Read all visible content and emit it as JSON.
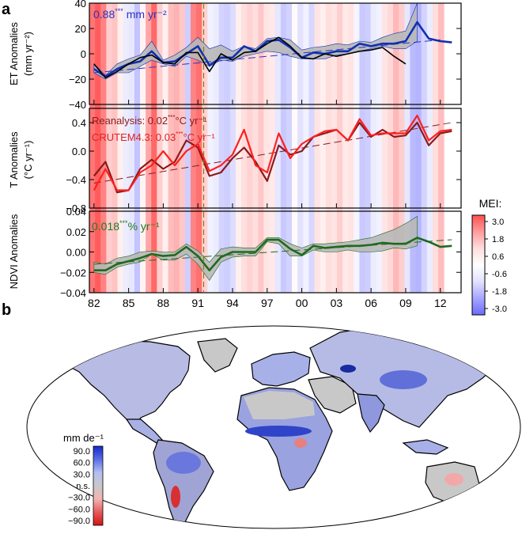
{
  "panel_labels": {
    "a": "a",
    "b": "b"
  },
  "mei_colorbar": {
    "title": "MEI:",
    "ticks": [
      "3.0",
      "1.8",
      "0.6",
      "-0.6",
      "-1.8",
      "-3.0"
    ],
    "stops": [
      {
        "v": 3.0,
        "c": "#ff5050"
      },
      {
        "v": 1.8,
        "c": "#ff9c9c"
      },
      {
        "v": 0.6,
        "c": "#ffdede"
      },
      {
        "v": 0,
        "c": "#ffffff"
      },
      {
        "v": -0.6,
        "c": "#e2e2ff"
      },
      {
        "v": -1.8,
        "c": "#a6a6ff"
      },
      {
        "v": -3.0,
        "c": "#6b6bff"
      }
    ]
  },
  "mei_background": {
    "x_range": [
      1981.6,
      2012.3
    ],
    "values": [
      2.4,
      2.8,
      2.2,
      0.9,
      1.1,
      0.3,
      -0.4,
      -0.5,
      -1.2,
      0.2,
      1.6,
      2.6,
      0.9,
      0.3,
      1.2,
      1.4,
      1.0,
      -1.0,
      2.2,
      2.5,
      0.8,
      -0.3,
      -0.4,
      -0.9,
      -1.0,
      -0.7,
      0.3,
      0.6,
      0.8,
      0.6,
      1.0,
      0.5,
      0.4,
      -0.5,
      -1.1,
      -0.9,
      0.1,
      -0.6,
      -0.3,
      -0.8,
      0.5,
      0.3,
      0.6,
      0.5,
      0.9,
      0.4,
      0.5,
      -0.2,
      -1.1,
      -1.0,
      -0.4,
      -0.3,
      0.5,
      0.7,
      1.3,
      0.9,
      -0.5,
      -1.4,
      -1.5,
      -0.9,
      -0.4,
      0.6,
      1.2
    ]
  },
  "pinatubo_line": {
    "x": 1991.5,
    "color": "#808000"
  },
  "chart_data": [
    {
      "id": "et",
      "type": "line",
      "ylabel": "ET Anomalies",
      "ylabel_units": "(mm yr⁻²)",
      "ylim": [
        -40,
        40
      ],
      "yticks": [
        40,
        20,
        0,
        -20,
        -40
      ],
      "ytick_labels": [
        "40",
        "20",
        "0",
        "−20",
        "−40"
      ],
      "annotation_value": "0.88",
      "annotation_stars": "***",
      "annotation_units": "mm yr⁻²",
      "annotation_color": "#3030c0",
      "x": [
        1982,
        1983,
        1984,
        1985,
        1986,
        1987,
        1988,
        1989,
        1990,
        1991,
        1992,
        1993,
        1994,
        1995,
        1996,
        1997,
        1998,
        1999,
        2000,
        2001,
        2002,
        2003,
        2004,
        2005,
        2006,
        2007,
        2008,
        2009,
        2010,
        2011,
        2012,
        2013
      ],
      "band_low": [
        -15,
        -20,
        -15,
        -15,
        -10,
        -5,
        -8,
        -10,
        -2,
        -5,
        -10,
        -5,
        -6,
        -2,
        0,
        2,
        1,
        -2,
        -4,
        -4,
        -4,
        -1,
        0,
        2,
        4,
        6,
        4,
        4,
        10,
        null,
        null,
        null
      ],
      "band_high": [
        -8,
        -17,
        -8,
        -4,
        -1,
        10,
        -5,
        -1,
        5,
        13,
        4,
        7,
        2,
        6,
        4,
        12,
        13,
        11,
        3,
        5,
        6,
        8,
        7,
        10,
        9,
        13,
        16,
        18,
        40,
        null,
        null,
        null
      ],
      "series": [
        {
          "name": "ET mean",
          "color": "#1030b0",
          "width": 2.6,
          "values": [
            -12,
            -18,
            -12,
            -8,
            -6,
            2,
            -7,
            -6,
            0,
            6,
            -9,
            -3,
            -3,
            6,
            2,
            10,
            11,
            5,
            -3,
            1,
            0,
            2,
            2,
            8,
            6,
            8,
            8,
            10,
            25,
            12,
            10,
            9
          ]
        },
        {
          "name": "ET model",
          "color": "#000000",
          "width": 1.6,
          "values": [
            -8,
            -19,
            -14,
            -8,
            -3,
            -1,
            -7,
            -8,
            1,
            1,
            -14,
            0,
            -5,
            1,
            2,
            8,
            13,
            6,
            -3,
            -4,
            0,
            -2,
            0,
            2,
            3,
            5,
            -2,
            -8,
            null,
            null,
            null,
            null
          ]
        }
      ],
      "trend": {
        "x": [
          1982,
          2012
        ],
        "y": [
          -15,
          11
        ],
        "color": "#3030c0"
      }
    },
    {
      "id": "t",
      "type": "line",
      "ylabel": "T Anomalies",
      "ylabel_units": "(°C yr⁻¹)",
      "ylim": [
        -0.8,
        0.6
      ],
      "yticks": [
        0.4,
        0.0,
        -0.4,
        -0.8
      ],
      "ytick_labels": [
        "0.4",
        "0.0",
        "−0.4",
        "−0.8"
      ],
      "annotations": [
        {
          "prefix": "Reanalysis: 0.02",
          "stars": "***",
          "suffix": "°C yr⁻¹",
          "color": "#8b1a1a"
        },
        {
          "prefix": "CRUTEM4.3: 0.03",
          "stars": "***",
          "suffix": "°C yr⁻¹",
          "color": "#e02020"
        }
      ],
      "x": [
        1982,
        1983,
        1984,
        1985,
        1986,
        1987,
        1988,
        1989,
        1990,
        1991,
        1992,
        1993,
        1994,
        1995,
        1996,
        1997,
        1998,
        1999,
        2000,
        2001,
        2002,
        2003,
        2004,
        2005,
        2006,
        2007,
        2008,
        2009,
        2010,
        2011,
        2012,
        2013
      ],
      "series": [
        {
          "name": "Reanalysis",
          "color": "#8b1a1a",
          "width": 2.2,
          "values": [
            -0.35,
            -0.15,
            -0.58,
            -0.55,
            -0.25,
            -0.12,
            -0.25,
            -0.15,
            0.15,
            0.05,
            -0.35,
            -0.3,
            -0.1,
            0.05,
            -0.15,
            -0.42,
            0.08,
            -0.05,
            0.0,
            0.2,
            0.25,
            0.3,
            0.15,
            0.4,
            0.2,
            0.3,
            0.2,
            0.22,
            0.4,
            0.08,
            0.25,
            0.28
          ]
        },
        {
          "name": "CRUTEM4.3",
          "color": "#ff2020",
          "width": 2.2,
          "values": [
            -0.55,
            -0.25,
            -0.55,
            -0.55,
            -0.3,
            -0.2,
            0.0,
            -0.2,
            0.0,
            0.1,
            -0.28,
            -0.2,
            -0.05,
            0.3,
            -0.2,
            -0.3,
            0.25,
            -0.1,
            0.1,
            0.2,
            0.28,
            0.3,
            0.15,
            0.45,
            0.22,
            0.25,
            0.25,
            0.25,
            0.5,
            0.15,
            0.28,
            0.3
          ]
        }
      ],
      "trend": {
        "x": [
          1982,
          2013
        ],
        "y": [
          -0.45,
          0.4
        ],
        "color": "#8b1a1a"
      }
    },
    {
      "id": "ndvi",
      "type": "line",
      "ylabel": "NDVI Anomalies",
      "ylim": [
        -0.04,
        0.04
      ],
      "yticks": [
        0.04,
        0.02,
        0.0,
        -0.02,
        -0.04
      ],
      "ytick_labels": [
        "0.04",
        "0.02",
        "0.00",
        "−0.02",
        "−0.04"
      ],
      "annotation_value": "0.018",
      "annotation_stars": "***",
      "annotation_units": "% yr⁻¹",
      "annotation_color": "#1f7a1f",
      "x": [
        1982,
        1983,
        1984,
        1985,
        1986,
        1987,
        1988,
        1989,
        1990,
        1991,
        1992,
        1993,
        1994,
        1995,
        1996,
        1997,
        1998,
        1999,
        2000,
        2001,
        2002,
        2003,
        2004,
        2005,
        2006,
        2007,
        2008,
        2009,
        2010,
        2011,
        2012,
        2013
      ],
      "band_low": [
        -0.02,
        -0.022,
        -0.015,
        -0.012,
        -0.01,
        -0.002,
        -0.008,
        -0.008,
        -0.002,
        -0.012,
        -0.028,
        -0.01,
        -0.005,
        -0.004,
        -0.004,
        0.01,
        0.008,
        -0.004,
        -0.004,
        0.002,
        0.0,
        0.0,
        0.002,
        0.0,
        0.0,
        0.001,
        0.004,
        0.003,
        0.006,
        null,
        null,
        null
      ],
      "band_high": [
        -0.01,
        -0.012,
        -0.006,
        -0.004,
        0.0,
        0.001,
        0.0,
        0.0,
        0.008,
        0.001,
        -0.01,
        0.003,
        0.005,
        0.004,
        0.004,
        0.014,
        0.014,
        0.008,
        0.004,
        0.008,
        0.008,
        0.009,
        0.01,
        0.012,
        0.014,
        0.018,
        0.022,
        0.028,
        0.035,
        null,
        null,
        null
      ],
      "series": [
        {
          "name": "NDVI",
          "color": "#1f6a1f",
          "width": 2.6,
          "values": [
            -0.018,
            -0.018,
            -0.012,
            -0.009,
            -0.006,
            -0.002,
            -0.004,
            -0.003,
            0.005,
            -0.004,
            -0.018,
            -0.005,
            0.0,
            0.0,
            0.0,
            0.012,
            0.012,
            0.003,
            -0.003,
            0.006,
            0.004,
            0.005,
            0.006,
            0.006,
            0.007,
            0.009,
            0.008,
            0.008,
            0.014,
            0.01,
            0.005,
            0.006
          ]
        }
      ],
      "trend": {
        "x": [
          1982,
          2013
        ],
        "y": [
          -0.012,
          0.012
        ],
        "color": "#1f6a1f"
      }
    }
  ],
  "x_axis": {
    "ticks": [
      1982,
      1985,
      1988,
      1991,
      1994,
      1997,
      2000,
      2003,
      2006,
      2009,
      2012
    ],
    "tick_labels": [
      "82",
      "85",
      "88",
      "91",
      "94",
      "97",
      "00",
      "03",
      "06",
      "09",
      "12"
    ],
    "range": [
      1981.6,
      2013.8
    ]
  },
  "map_legend": {
    "unit": "mm de⁻¹",
    "labels": [
      "90.0",
      "60.0",
      "30.0",
      "n.s.",
      "−30.0",
      "−60.0",
      "−90.0"
    ],
    "colors": [
      "#1428c8",
      "#5a6ee6",
      "#b4bef2",
      "#c8c8c8",
      "#f4b4b4",
      "#e65a5a",
      "#d21414"
    ]
  }
}
